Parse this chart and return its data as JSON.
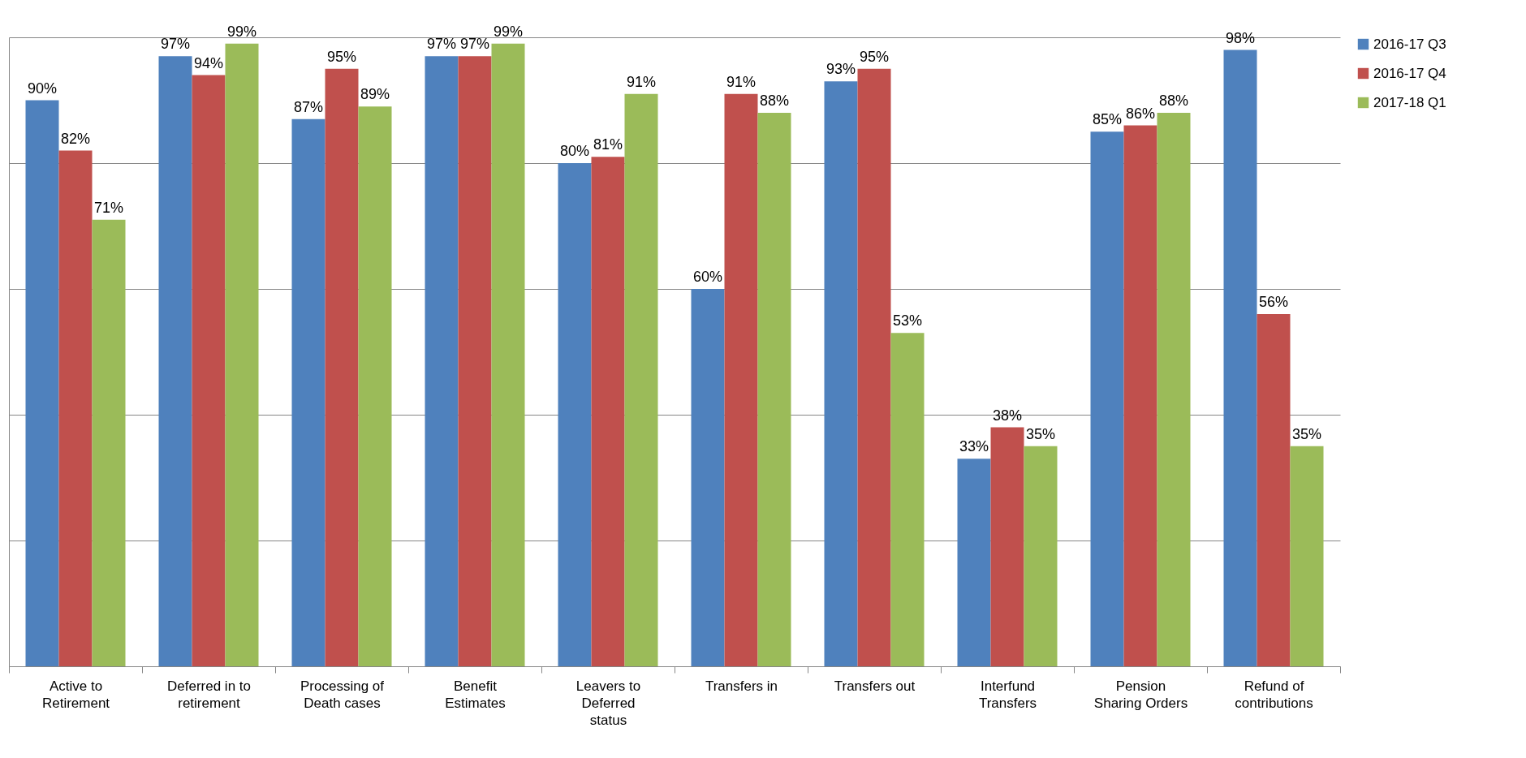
{
  "chart_data": {
    "type": "bar",
    "categories": [
      "Active to Retirement",
      "Deferred in to retirement",
      "Processing of Death cases",
      "Benefit Estimates",
      "Leavers to Deferred status",
      "Transfers in",
      "Transfers out",
      "Interfund Transfers",
      "Pension Sharing Orders",
      "Refund of contributions"
    ],
    "series": [
      {
        "name": "2016-17 Q3",
        "color": "#4f81bd",
        "values": [
          90,
          97,
          87,
          97,
          80,
          60,
          93,
          33,
          85,
          98
        ],
        "value_labels": [
          "90%",
          "97%",
          "87%",
          "97%",
          "80%",
          "60%",
          "93%",
          "33%",
          "85%",
          "98%"
        ]
      },
      {
        "name": "2016-17 Q4",
        "color": "#c0504d",
        "values": [
          82,
          94,
          95,
          97,
          81,
          91,
          95,
          38,
          86,
          56
        ],
        "value_labels": [
          "82%",
          "94%",
          "95%",
          "97%",
          "81%",
          "91%",
          "95%",
          "38%",
          "86%",
          "56%"
        ]
      },
      {
        "name": "2017-18 Q1",
        "color": "#9bbb59",
        "values": [
          71,
          99,
          89,
          99,
          91,
          88,
          53,
          35,
          88,
          35
        ],
        "value_labels": [
          "71%",
          "99%",
          "89%",
          "99%",
          "91%",
          "88%",
          "53%",
          "35%",
          "88%",
          "35%"
        ]
      }
    ],
    "ylim": [
      0,
      100
    ],
    "yticks": [
      {
        "value": 0,
        "label": null
      },
      {
        "value": 20,
        "label": null
      },
      {
        "value": 40,
        "label": null
      },
      {
        "value": 60,
        "label": null
      },
      {
        "value": 80,
        "label": null
      },
      {
        "value": 100,
        "label": null
      }
    ],
    "grid": "y",
    "legend": "right",
    "tick_labels": "x"
  }
}
